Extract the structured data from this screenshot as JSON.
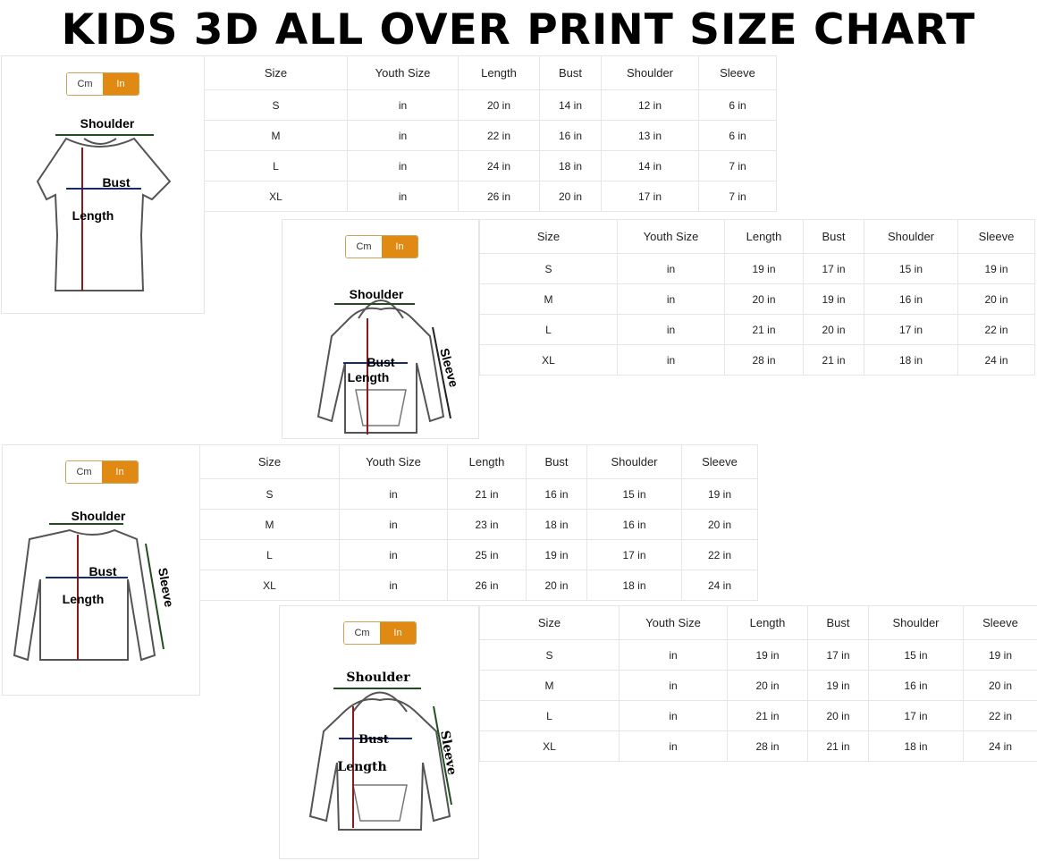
{
  "title": "KIDS 3D ALL OVER PRINT SIZE CHART",
  "accent_color": "#e08a14",
  "toggle": {
    "cm": "Cm",
    "in": "In",
    "selected": "In"
  },
  "charts": [
    {
      "garment": "t-shirt",
      "labels": {
        "shoulder": "Shoulder",
        "bust": "Bust",
        "length": "Length"
      },
      "headers": [
        "Size",
        "Youth Size",
        "Length",
        "Bust",
        "Shoulder",
        "Sleeve"
      ],
      "rows": [
        [
          "S",
          "in",
          "20 in",
          "14 in",
          "12 in",
          "6 in"
        ],
        [
          "M",
          "in",
          "22 in",
          "16 in",
          "13 in",
          "6 in"
        ],
        [
          "L",
          "in",
          "24 in",
          "18 in",
          "14 in",
          "7 in"
        ],
        [
          "XL",
          "in",
          "26 in",
          "20 in",
          "17 in",
          "7 in"
        ]
      ]
    },
    {
      "garment": "zip-hoodie",
      "labels": {
        "shoulder": "Shoulder",
        "bust": "Bust",
        "length": "Length",
        "sleeve": "Sleeve"
      },
      "headers": [
        "Size",
        "Youth Size",
        "Length",
        "Bust",
        "Shoulder",
        "Sleeve"
      ],
      "rows": [
        [
          "S",
          "in",
          "19 in",
          "17 in",
          "15 in",
          "19 in"
        ],
        [
          "M",
          "in",
          "20 in",
          "19 in",
          "16 in",
          "20 in"
        ],
        [
          "L",
          "in",
          "21 in",
          "20 in",
          "17 in",
          "22 in"
        ],
        [
          "XL",
          "in",
          "28 in",
          "21 in",
          "18 in",
          "24 in"
        ]
      ]
    },
    {
      "garment": "long-sleeve",
      "labels": {
        "shoulder": "Shoulder",
        "bust": "Bust",
        "length": "Length",
        "sleeve": "Sleeve"
      },
      "headers": [
        "Size",
        "Youth Size",
        "Length",
        "Bust",
        "Shoulder",
        "Sleeve"
      ],
      "rows": [
        [
          "S",
          "in",
          "21 in",
          "16 in",
          "15 in",
          "19 in"
        ],
        [
          "M",
          "in",
          "23 in",
          "18 in",
          "16 in",
          "20 in"
        ],
        [
          "L",
          "in",
          "25 in",
          "19 in",
          "17 in",
          "22 in"
        ],
        [
          "XL",
          "in",
          "26 in",
          "20 in",
          "18 in",
          "24 in"
        ]
      ]
    },
    {
      "garment": "pullover-hoodie",
      "labels": {
        "shoulder": "Shoulder",
        "bust": "Bust",
        "length": "Length",
        "sleeve": "Sleeve"
      },
      "headers": [
        "Size",
        "Youth Size",
        "Length",
        "Bust",
        "Shoulder",
        "Sleeve"
      ],
      "rows": [
        [
          "S",
          "in",
          "19 in",
          "17 in",
          "15 in",
          "19 in"
        ],
        [
          "M",
          "in",
          "20 in",
          "19 in",
          "16 in",
          "20 in"
        ],
        [
          "L",
          "in",
          "21 in",
          "20 in",
          "17 in",
          "22 in"
        ],
        [
          "XL",
          "in",
          "28 in",
          "21 in",
          "18 in",
          "24 in"
        ]
      ]
    }
  ]
}
